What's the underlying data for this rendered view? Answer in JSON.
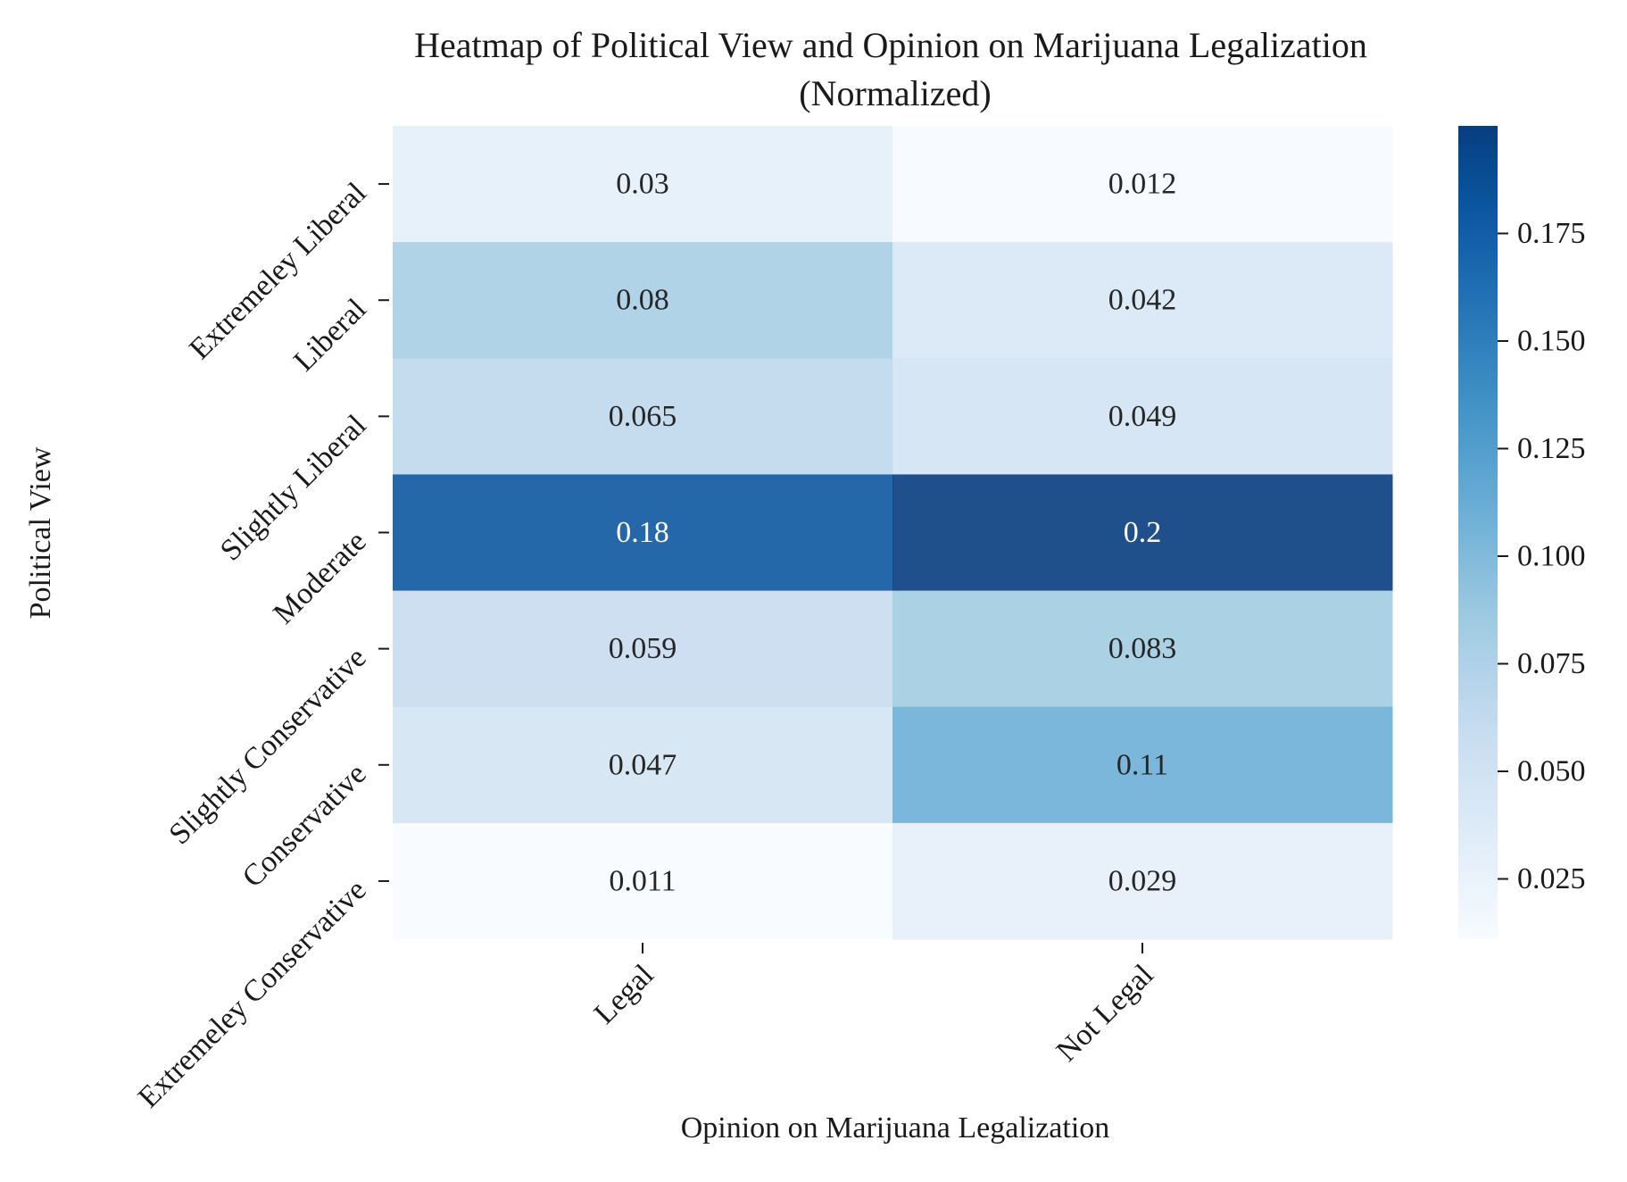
{
  "chart_data": {
    "type": "heatmap",
    "title": "Heatmap of Political View and Opinion on Marijuana Legalization\n(Normalized)",
    "xlabel": "Opinion on Marijuana Legalization",
    "ylabel": "Political View",
    "x_categories": [
      "Legal",
      "Not Legal"
    ],
    "y_categories": [
      "Extremeley Liberal",
      "Liberal",
      "Slightly Liberal",
      "Moderate",
      "Slightly Conservative",
      "Conservative",
      "Extremeley Conservative"
    ],
    "values": [
      [
        0.03,
        0.012
      ],
      [
        0.08,
        0.042
      ],
      [
        0.065,
        0.049
      ],
      [
        0.18,
        0.2
      ],
      [
        0.059,
        0.083
      ],
      [
        0.047,
        0.11
      ],
      [
        0.011,
        0.029
      ]
    ],
    "value_labels": [
      [
        "0.03",
        "0.012"
      ],
      [
        "0.08",
        "0.042"
      ],
      [
        "0.065",
        "0.049"
      ],
      [
        "0.18",
        "0.2"
      ],
      [
        "0.059",
        "0.083"
      ],
      [
        "0.047",
        "0.11"
      ],
      [
        "0.011",
        "0.029"
      ]
    ],
    "colormap": "Blues",
    "colorbar": {
      "range": [
        0.011,
        0.2
      ],
      "ticks": [
        0.025,
        0.05,
        0.075,
        0.1,
        0.125,
        0.15,
        0.175
      ],
      "tick_labels": [
        "0.025",
        "0.050",
        "0.075",
        "0.100",
        "0.125",
        "0.150",
        "0.175"
      ]
    },
    "grid": false
  }
}
